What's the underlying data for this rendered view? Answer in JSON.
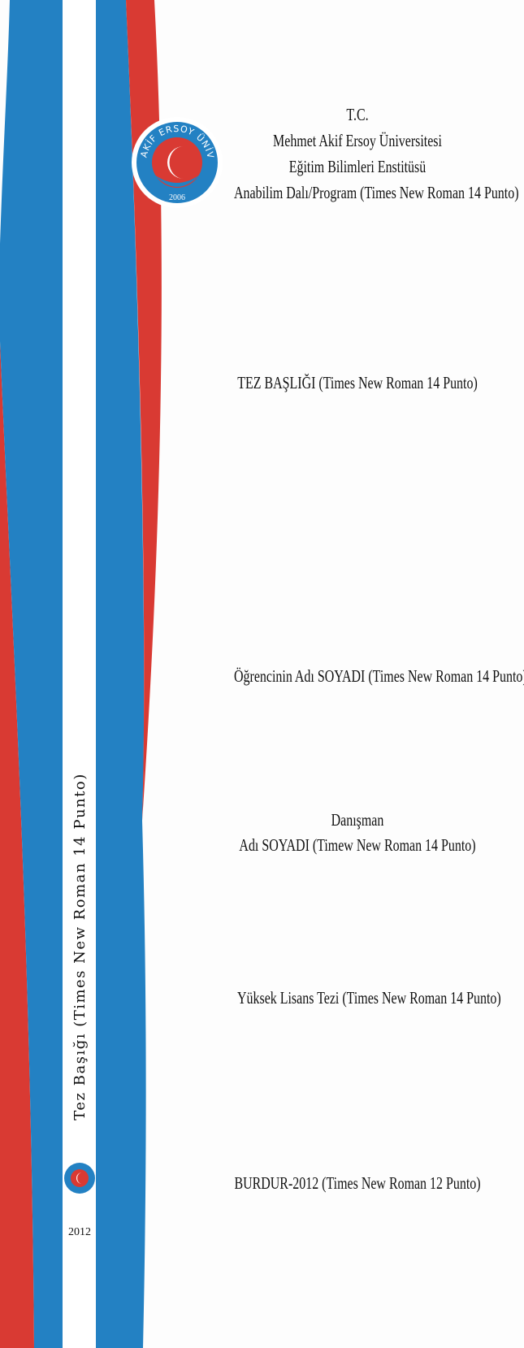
{
  "logo": {
    "ring_text": "MEHMET AKİF ERSOY ÜNİVERSİTESİ",
    "year": "2006"
  },
  "header": {
    "lines": [
      "T.C.",
      "Mehmet Akif Ersoy Üniversitesi",
      "Eğitim Bilimleri Enstitüsü",
      "Anabilim Dalı/Program (Times New Roman 14 Punto)"
    ]
  },
  "title": "TEZ BAŞLIĞI (Times New Roman 14 Punto)",
  "student": "Öğrencinin Adı SOYADI (Times New Roman 14 Punto)",
  "advisor": {
    "role": "Danışman",
    "name": "Adı SOYADI (Timew New Roman 14 Punto)"
  },
  "degree": "Yüksek Lisans Tezi (Times New Roman 14 Punto)",
  "footer": "BURDUR-2012 (Times New Roman 12 Punto)",
  "spine": {
    "title": "Tez Başığı (Times New Roman 14 Punto)",
    "year": "2012"
  }
}
